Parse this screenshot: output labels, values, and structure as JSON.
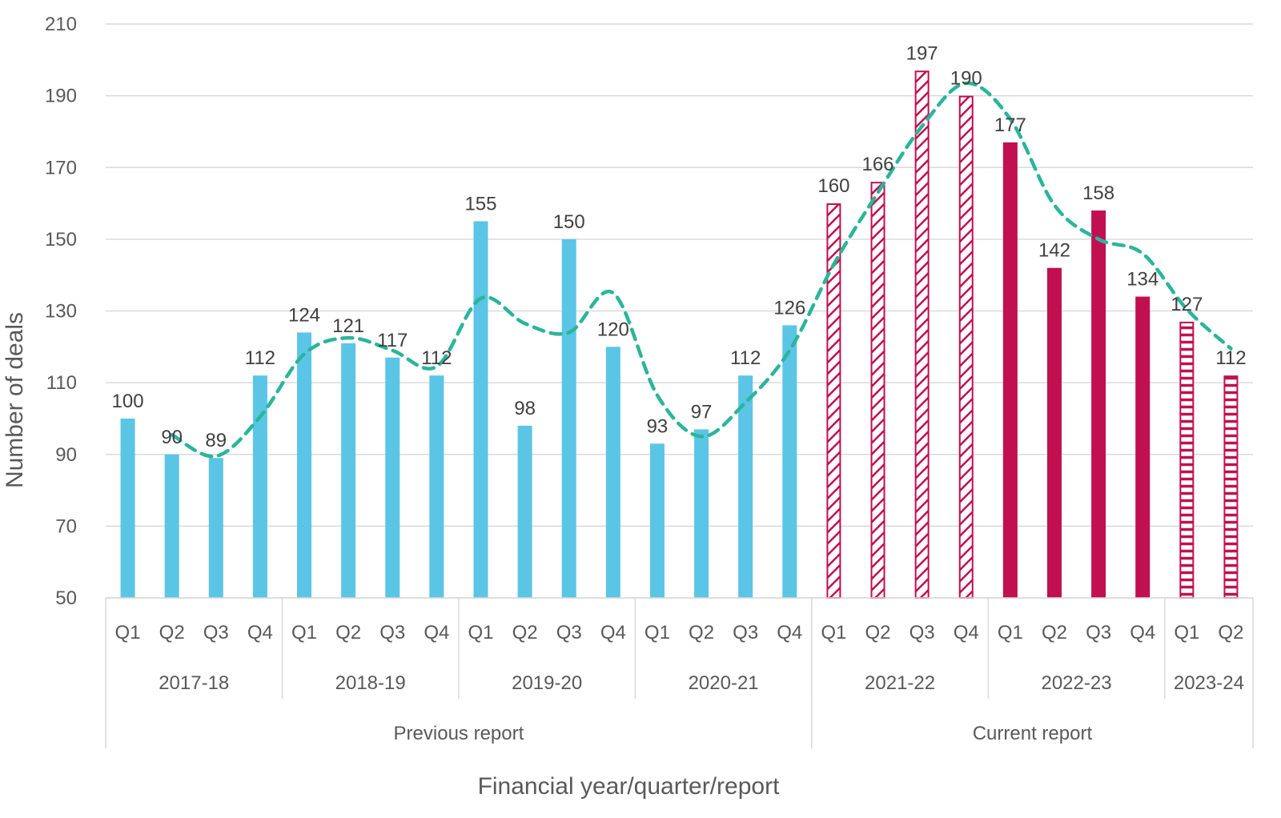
{
  "chart_data": {
    "type": "bar",
    "title": "",
    "xlabel": "Financial year/quarter/report",
    "ylabel": "Number of deals",
    "ylim": [
      50,
      210
    ],
    "yticks": [
      "50",
      "70",
      "90",
      "110",
      "130",
      "150",
      "170",
      "190",
      "210"
    ],
    "grid": true,
    "legend": "none",
    "colors": {
      "previous": "#5BC5E6",
      "current": "#C0104F",
      "trend": "#2BB59B",
      "grid": "#D9D9D9",
      "axis_text": "#595959"
    },
    "categories": [
      "Q1",
      "Q2",
      "Q3",
      "Q4",
      "Q1",
      "Q2",
      "Q3",
      "Q4",
      "Q1",
      "Q2",
      "Q3",
      "Q4",
      "Q1",
      "Q2",
      "Q3",
      "Q4",
      "Q1",
      "Q2",
      "Q3",
      "Q4",
      "Q1",
      "Q2",
      "Q3",
      "Q4",
      "Q1",
      "Q2"
    ],
    "values": [
      100,
      90,
      89,
      112,
      124,
      121,
      117,
      112,
      155,
      98,
      150,
      120,
      93,
      97,
      112,
      126,
      160,
      166,
      197,
      190,
      177,
      142,
      158,
      134,
      127,
      112
    ],
    "value_labels": [
      "100",
      "90",
      "89",
      "112",
      "124",
      "121",
      "117",
      "112",
      "155",
      "98",
      "150",
      "120",
      "93",
      "97",
      "112",
      "126",
      "160",
      "166",
      "197",
      "190",
      "177",
      "142",
      "158",
      "134",
      "127",
      "112"
    ],
    "bar_fill": [
      "solid",
      "solid",
      "solid",
      "solid",
      "solid",
      "solid",
      "solid",
      "solid",
      "solid",
      "solid",
      "solid",
      "solid",
      "solid",
      "solid",
      "solid",
      "solid",
      "diagonal-hatch",
      "diagonal-hatch",
      "diagonal-hatch",
      "diagonal-hatch",
      "solid",
      "solid",
      "solid",
      "solid",
      "horizontal-hatch",
      "horizontal-hatch"
    ],
    "bar_group": [
      "previous",
      "previous",
      "previous",
      "previous",
      "previous",
      "previous",
      "previous",
      "previous",
      "previous",
      "previous",
      "previous",
      "previous",
      "previous",
      "previous",
      "previous",
      "previous",
      "current",
      "current",
      "current",
      "current",
      "current",
      "current",
      "current",
      "current",
      "current",
      "current"
    ],
    "trend_line": {
      "style": "dashed",
      "values": [
        null,
        95.5,
        89.5,
        100.5,
        118,
        122.5,
        119,
        114.5,
        133.5,
        126.5,
        124,
        135,
        106.5,
        95,
        104.5,
        119,
        143,
        163,
        181.5,
        193.5,
        183.5,
        159.5,
        150,
        146,
        130.5,
        119.5
      ]
    },
    "years": [
      {
        "label": "2017-18",
        "span": 4
      },
      {
        "label": "2018-19",
        "span": 4
      },
      {
        "label": "2019-20",
        "span": 4
      },
      {
        "label": "2020-21",
        "span": 4
      },
      {
        "label": "2021-22",
        "span": 4
      },
      {
        "label": "2022-23",
        "span": 4
      },
      {
        "label": "2023-24",
        "span": 2
      }
    ],
    "reports": [
      {
        "label": "Previous report",
        "span": 16
      },
      {
        "label": "Current report",
        "span": 10
      }
    ]
  }
}
